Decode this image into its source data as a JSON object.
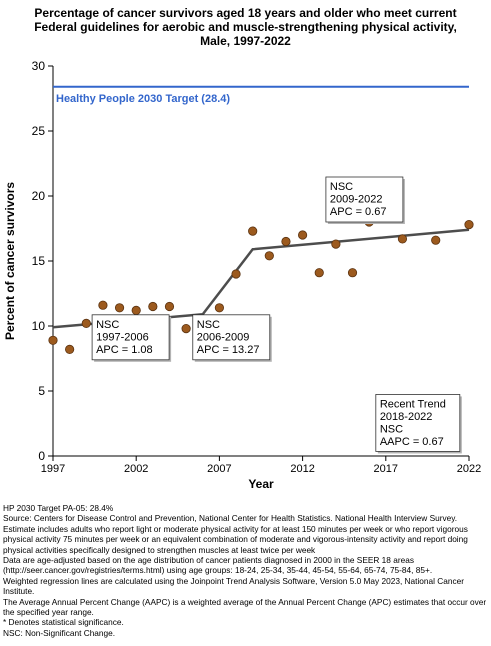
{
  "title_lines": [
    "Percentage of cancer survivors aged 18 years and older who meet current",
    "Federal guidelines for aerobic and muscle-strengthening physical activity,",
    "Male,  1997-2022"
  ],
  "chart_data": {
    "type": "scatter",
    "xlabel": "Year",
    "ylabel": "Percent of cancer survivors",
    "xlim": [
      1997,
      2022
    ],
    "ylim": [
      0,
      30
    ],
    "x_ticks": [
      1997,
      2002,
      2007,
      2012,
      2017,
      2022
    ],
    "y_ticks": [
      0,
      5,
      10,
      15,
      20,
      25,
      30
    ],
    "grid": false,
    "target": {
      "value": 28.4,
      "label": "Healthy People 2030 Target (28.4)",
      "color": "#3366cc"
    },
    "points": {
      "x": [
        1997,
        1998,
        1999,
        2000,
        2001,
        2002,
        2003,
        2004,
        2005,
        2006,
        2007,
        2008,
        2009,
        2010,
        2011,
        2012,
        2013,
        2014,
        2015,
        2016,
        2017,
        2018,
        2020,
        2022
      ],
      "y": [
        8.9,
        8.2,
        10.2,
        11.6,
        11.4,
        11.2,
        11.5,
        11.5,
        9.8,
        9.6,
        11.4,
        14.0,
        17.3,
        15.4,
        16.5,
        17.0,
        14.1,
        16.3,
        14.1,
        18.0,
        18.3,
        16.7,
        16.6,
        17.8
      ],
      "color": "#9c5a1e"
    },
    "trend": {
      "x": [
        1997,
        2006,
        2009,
        2022
      ],
      "y": [
        9.9,
        10.9,
        15.9,
        17.4
      ],
      "color": "#4d4d4d"
    },
    "annotations": [
      {
        "lines": [
          "NSC",
          "1997-2006",
          "APC =  1.08"
        ],
        "x": 1999.35,
        "y": 7.4
      },
      {
        "lines": [
          "NSC",
          "2006-2009",
          "APC = 13.27"
        ],
        "x": 2005.4,
        "y": 7.4
      },
      {
        "lines": [
          "NSC",
          "2009-2022",
          "APC =  0.67"
        ],
        "x": 2013.4,
        "y": 18.0
      },
      {
        "lines": [
          "Recent Trend",
          "2018-2022",
          "NSC",
          "AAPC =  0.67"
        ],
        "x": 2016.4,
        "y": 0.35
      }
    ]
  },
  "footnotes": [
    "HP 2030 Target PA-05: 28.4%",
    "Source: Centers for Disease Control and Prevention, National Center for Health Statistics. National Health Interview Survey.",
    "Estimate includes adults who report light or moderate physical activity for at least 150 minutes per week or who report vigorous physical activity 75 minutes per week or an equivalent combination of moderate and vigorous-intensity activity and report doing physical activities specifically designed to strengthen muscles at least twice per week",
    "Data are age-adjusted based on the age distribution of cancer patients diagnosed in 2000 in the SEER 18 areas (http://seer.cancer.gov/registries/terms.html) using age groups: 18-24, 25-34, 35-44, 45-54, 55-64, 65-74, 75-84, 85+.",
    "Weighted regression lines are calculated using the Joinpoint Trend Analysis Software, Version 5.0 May 2023, National Cancer Institute.",
    "The Average Annual Percent Change (AAPC) is a weighted average of the Annual Percent Change (APC) estimates that occur over the specified year range.",
    "* Denotes statistical significance.",
    "NSC: Non-Significant Change."
  ]
}
